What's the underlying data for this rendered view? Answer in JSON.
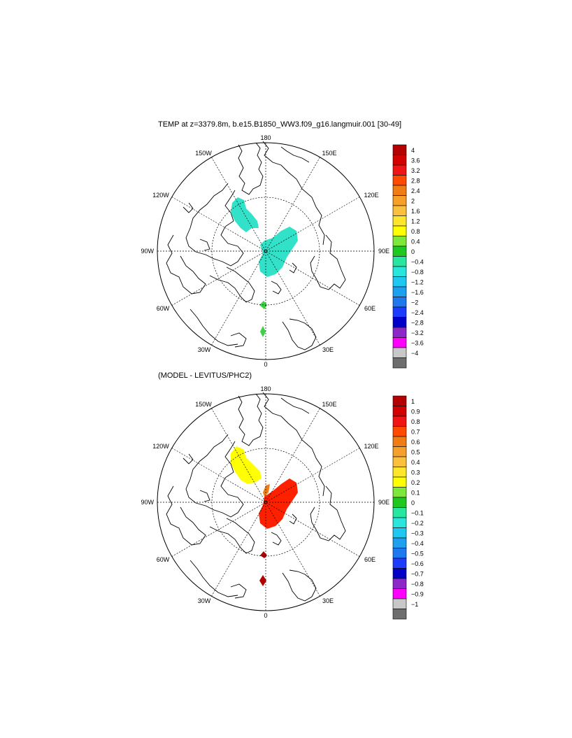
{
  "panel1": {
    "title": "TEMP at z=3379.8m, b.e15.B1850_WW3.f09_g16.langmuir.001 [30-49]",
    "lon_labels": {
      "top": "180",
      "bottom": "0",
      "left": "90W",
      "right": "90E",
      "ul150": "150W",
      "ul120": "120W",
      "ur150": "150E",
      "ur120": "120E",
      "ll60": "60W",
      "ll30": "30W",
      "lr60": "60E",
      "lr30": "30E"
    },
    "colorbar": {
      "labels": [
        "4",
        "3.6",
        "3.2",
        "2.8",
        "2.4",
        "2",
        "1.6",
        "1.2",
        "0.8",
        "0.4",
        "0",
        "−0.4",
        "−0.8",
        "−1.2",
        "−1.6",
        "−2",
        "−2.4",
        "−2.8",
        "−3.2",
        "−3.6",
        "−4"
      ],
      "colors": [
        "#b40000",
        "#d20000",
        "#f01414",
        "#ff4a00",
        "#f07d14",
        "#f5a028",
        "#fbc03c",
        "#ffe62d",
        "#ffff00",
        "#7ee83a",
        "#1ec81e",
        "#26e6a0",
        "#28e6dc",
        "#1ec8f0",
        "#1ea0f0",
        "#1e78f0",
        "#1e3cff",
        "#0000c8",
        "#8c28c8",
        "#ff00ff",
        "#c8c8c8",
        "#6e6e6e"
      ]
    },
    "fields": [
      {
        "name": "cyan-anomaly",
        "color": "#32e2c8"
      },
      {
        "name": "green-anomaly",
        "color": "#3cd246"
      }
    ]
  },
  "panel2": {
    "title": "(MODEL - LEVITUS/PHC2)",
    "lon_labels": {
      "top": "180",
      "bottom": "0",
      "left": "90W",
      "right": "90E",
      "ul150": "150W",
      "ul120": "120W",
      "ur150": "150E",
      "ur120": "120E",
      "ll60": "60W",
      "ll30": "30W",
      "lr60": "60E",
      "lr30": "30E"
    },
    "colorbar": {
      "labels": [
        "1",
        "0.9",
        "0.8",
        "0.7",
        "0.6",
        "0.5",
        "0.4",
        "0.3",
        "0.2",
        "0.1",
        "0",
        "−0.1",
        "−0.2",
        "−0.3",
        "−0.4",
        "−0.5",
        "−0.6",
        "−0.7",
        "−0.8",
        "−0.9",
        "−1"
      ],
      "colors": [
        "#b40000",
        "#d20000",
        "#f01414",
        "#ff4a00",
        "#f07d14",
        "#f5a028",
        "#fbc03c",
        "#ffe62d",
        "#ffff00",
        "#7ee83a",
        "#1ec81e",
        "#26e6a0",
        "#28e6dc",
        "#1ec8f0",
        "#1ea0f0",
        "#1e78f0",
        "#1e3cff",
        "#0000c8",
        "#8c28c8",
        "#ff00ff",
        "#c8c8c8",
        "#6e6e6e"
      ]
    },
    "fields": [
      {
        "name": "yellow-anomaly",
        "color": "#ffff00"
      },
      {
        "name": "red-anomaly",
        "color": "#ff2000"
      },
      {
        "name": "orange-anomaly",
        "color": "#f07d14"
      },
      {
        "name": "darkred-anomaly",
        "color": "#b40000"
      }
    ]
  }
}
